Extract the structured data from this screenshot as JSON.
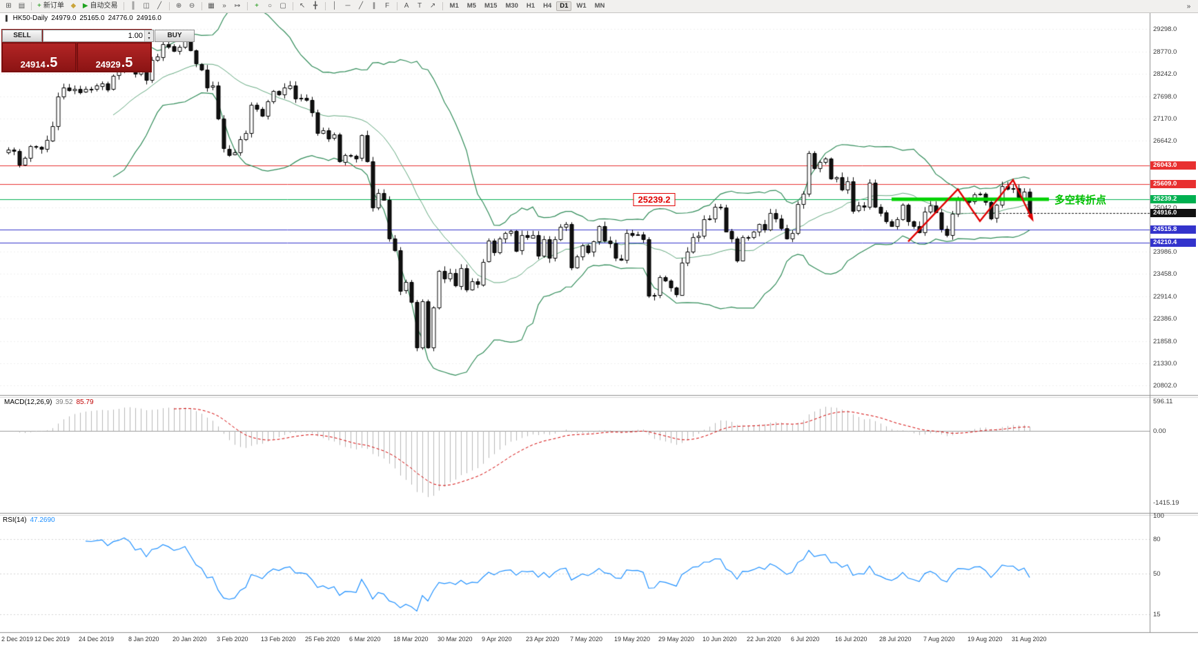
{
  "toolbar": {
    "groups": [
      {
        "items": [
          {
            "name": "new-chart",
            "glyph": "⊞",
            "color": "#555"
          },
          {
            "name": "chart-profiles",
            "glyph": "▤",
            "color": "#555"
          }
        ]
      },
      {
        "items": [
          {
            "name": "new-order",
            "glyph": "+",
            "color": "#089000",
            "label": "新订单"
          },
          {
            "name": "metaeditor",
            "glyph": "◆",
            "color": "#caa53c"
          },
          {
            "name": "autotrading",
            "glyph": "▶",
            "color": "#1fa31f",
            "label": "自动交易"
          }
        ]
      },
      {
        "items": [
          {
            "name": "bar-chart",
            "glyph": "║",
            "color": "#555"
          },
          {
            "name": "candlestick-chart",
            "glyph": "◫",
            "color": "#555"
          },
          {
            "name": "line-chart",
            "glyph": "╱",
            "color": "#555"
          }
        ]
      },
      {
        "items": [
          {
            "name": "zoom-in",
            "glyph": "⊕",
            "color": "#555"
          },
          {
            "name": "zoom-out",
            "glyph": "⊖",
            "color": "#555"
          }
        ]
      },
      {
        "items": [
          {
            "name": "tile-windows",
            "glyph": "▦",
            "color": "#555"
          },
          {
            "name": "auto-scroll",
            "glyph": "»",
            "color": "#555"
          },
          {
            "name": "chart-shift",
            "glyph": "↦",
            "color": "#555"
          }
        ]
      },
      {
        "items": [
          {
            "name": "add-indicator",
            "glyph": "+",
            "color": "#089000"
          },
          {
            "name": "period-selector",
            "glyph": "○",
            "color": "#555"
          },
          {
            "name": "template-selector",
            "glyph": "▢",
            "color": "#555"
          }
        ]
      },
      {
        "items": [
          {
            "name": "cursor-tool",
            "glyph": "↖",
            "color": "#555"
          },
          {
            "name": "crosshair-tool",
            "glyph": "╋",
            "color": "#555"
          }
        ]
      },
      {
        "items": [
          {
            "name": "vertical-line-tool",
            "glyph": "│",
            "color": "#555"
          },
          {
            "name": "horizontal-line-tool",
            "glyph": "─",
            "color": "#555"
          },
          {
            "name": "trendline-tool",
            "glyph": "╱",
            "color": "#555"
          },
          {
            "name": "channel-tool",
            "glyph": "∥",
            "color": "#555"
          },
          {
            "name": "fibonacci-tool",
            "glyph": "F",
            "color": "#555"
          }
        ]
      },
      {
        "items": [
          {
            "name": "text-tool",
            "glyph": "A",
            "color": "#555"
          },
          {
            "name": "text-label-tool",
            "glyph": "T",
            "color": "#555"
          },
          {
            "name": "arrow-tool",
            "glyph": "↗",
            "color": "#555"
          }
        ]
      }
    ],
    "timeframes": {
      "items": [
        "M1",
        "M5",
        "M15",
        "M30",
        "H1",
        "H4",
        "D1",
        "W1",
        "MN"
      ],
      "active": "D1"
    },
    "overflow_glyph": "»"
  },
  "chart_header": {
    "symbol": "HK50-Daily",
    "open": "24979.0",
    "high": "25165.0",
    "low": "24776.0",
    "close": "24916.0"
  },
  "trade_panel": {
    "sell_label": "SELL",
    "buy_label": "BUY",
    "volume": "1.00",
    "bid_main": "24914",
    "bid_frac": ".5",
    "ask_main": "24929",
    "ask_frac": ".5",
    "spin_up": "▴",
    "spin_down": "▾"
  },
  "chart_data": {
    "type": "candlestick",
    "symbol": "HK50",
    "timeframe": "Daily",
    "first_open": 26350,
    "closes": [
      26420,
      26390,
      26060,
      26220,
      26500,
      26490,
      26440,
      26650,
      26990,
      27690,
      27910,
      27840,
      27880,
      27800,
      27870,
      27860,
      27950,
      28010,
      27870,
      28190,
      28310,
      28540,
      28450,
      28230,
      28320,
      28090,
      28560,
      28640,
      28950,
      28890,
      28780,
      28880,
      29060,
      28790,
      28470,
      28340,
      27910,
      27950,
      27160,
      26450,
      26310,
      26360,
      26680,
      26820,
      27500,
      27400,
      27240,
      27580,
      27820,
      27730,
      27900,
      27960,
      27650,
      27660,
      27610,
      27310,
      26820,
      26890,
      26700,
      26780,
      26130,
      26290,
      26280,
      26220,
      26770,
      26150,
      25040,
      25390,
      25230,
      24310,
      24030,
      23060,
      23260,
      22790,
      21710,
      22810,
      21700,
      22660,
      23530,
      23350,
      23480,
      23180,
      23600,
      23090,
      23280,
      23210,
      23750,
      24250,
      23970,
      24300,
      24430,
      24480,
      24010,
      24380,
      24330,
      24390,
      23890,
      24280,
      23830,
      24280,
      24580,
      24640,
      23610,
      23870,
      24140,
      23980,
      24230,
      24600,
      24250,
      24180,
      23830,
      23800,
      24440,
      24390,
      24400,
      24280,
      22930,
      22950,
      23380,
      23300,
      23130,
      22960,
      23730,
      23990,
      24330,
      24370,
      24770,
      24780,
      25060,
      25050,
      24480,
      24300,
      23780,
      24340,
      24330,
      24460,
      24640,
      24510,
      24910,
      24780,
      24550,
      24300,
      24430,
      25120,
      25370,
      26340,
      25980,
      26130,
      26210,
      25730,
      25770,
      25480,
      25670,
      24970,
      25090,
      25060,
      25640,
      25060,
      24920,
      24710,
      24600,
      24770,
      25110,
      24710,
      24600,
      24460,
      24950,
      25100,
      24930,
      24530,
      24380,
      24890,
      25240,
      25230,
      25180,
      25350,
      25370,
      25180,
      24790,
      25110,
      25550,
      25490,
      25500,
      25280,
      25420,
      24916
    ],
    "y_range": [
      20600,
      29700
    ],
    "y_ticks": [
      29298.0,
      28770.0,
      28242.0,
      27698.0,
      27170.0,
      26642.0,
      25042.0,
      23986.0,
      23458.0,
      22914.0,
      22386.0,
      21858.0,
      21330.0,
      20802.0
    ],
    "lines": [
      {
        "price": 26043.0,
        "label": "26043.0",
        "color": "#e83030",
        "style": "solid"
      },
      {
        "price": 25609.0,
        "label": "25609.0",
        "color": "#e83030",
        "style": "solid"
      },
      {
        "price": 25239.2,
        "label": "25239.2",
        "color": "#00b050",
        "style": "solid"
      },
      {
        "price": 24916.0,
        "label": "24916.0",
        "color": "#111111",
        "style": "dotted"
      },
      {
        "price": 24515.8,
        "label": "24515.8",
        "color": "#3333cc",
        "style": "solid"
      },
      {
        "price": 24210.4,
        "label": "24210.4",
        "color": "#3333cc",
        "style": "solid"
      }
    ],
    "bollinger": {
      "period": 20,
      "deviation": 2,
      "color": "#2e8b57",
      "mid_color": "#63a97f"
    },
    "date_labels": [
      {
        "i": 0,
        "t": "2 Dec 2019"
      },
      {
        "i": 8,
        "t": "12 Dec 2019"
      },
      {
        "i": 16,
        "t": "24 Dec 2019"
      },
      {
        "i": 25,
        "t": "8 Jan 2020"
      },
      {
        "i": 33,
        "t": "20 Jan 2020"
      },
      {
        "i": 41,
        "t": "3 Feb 2020"
      },
      {
        "i": 49,
        "t": "13 Feb 2020"
      },
      {
        "i": 57,
        "t": "25 Feb 2020"
      },
      {
        "i": 65,
        "t": "6 Mar 2020"
      },
      {
        "i": 73,
        "t": "18 Mar 2020"
      },
      {
        "i": 81,
        "t": "30 Mar 2020"
      },
      {
        "i": 89,
        "t": "9 Apr 2020"
      },
      {
        "i": 97,
        "t": "23 Apr 2020"
      },
      {
        "i": 105,
        "t": "7 May 2020"
      },
      {
        "i": 113,
        "t": "19 May 2020"
      },
      {
        "i": 121,
        "t": "29 May 2020"
      },
      {
        "i": 129,
        "t": "10 Jun 2020"
      },
      {
        "i": 137,
        "t": "22 Jun 2020"
      },
      {
        "i": 145,
        "t": "6 Jul 2020"
      },
      {
        "i": 153,
        "t": "16 Jul 2020"
      },
      {
        "i": 161,
        "t": "28 Jul 2020"
      },
      {
        "i": 169,
        "t": "7 Aug 2020"
      },
      {
        "i": 177,
        "t": "19 Aug 2020"
      },
      {
        "i": 185,
        "t": "31 Aug 2020"
      }
    ],
    "indicators": {
      "macd": {
        "label": "MACD(12,26,9)",
        "main_value": "39.52",
        "signal_value": "85.79",
        "ticks": [
          {
            "v": 596.11,
            "t": "596.11"
          },
          {
            "v": 0,
            "t": "0.00"
          },
          {
            "v": -1415.19,
            "t": "-1415.19"
          }
        ],
        "range": [
          -1600,
          660
        ],
        "hist_color": "#b6b6b6",
        "signal_color": "#d40000"
      },
      "rsi": {
        "label": "RSI(14)",
        "value": "47.2690",
        "ticks": [
          {
            "v": 100,
            "t": "100"
          },
          {
            "v": 80,
            "t": "80"
          },
          {
            "v": 50,
            "t": "50"
          },
          {
            "v": 15,
            "t": "15"
          }
        ],
        "levels": [
          80,
          50,
          15
        ],
        "line_color": "#1e90ff"
      }
    },
    "annotations": {
      "pivot_price_label": {
        "text": "25239.2",
        "i": 117,
        "price": 25239.2
      },
      "pivot_text": {
        "text": "多空转折点",
        "i": 189.5,
        "price": 25239.2,
        "color": "#00c000"
      },
      "support_zone": {
        "price": 25239.2,
        "from_i": 160,
        "to_i": 188.5,
        "color": "#00d200",
        "width": 5
      },
      "zigzag": {
        "color": "#e00000",
        "points": [
          [
            163,
            24230
          ],
          [
            172,
            25480
          ],
          [
            176,
            24720
          ],
          [
            182,
            25700
          ],
          [
            185.5,
            24760
          ]
        ]
      }
    }
  }
}
